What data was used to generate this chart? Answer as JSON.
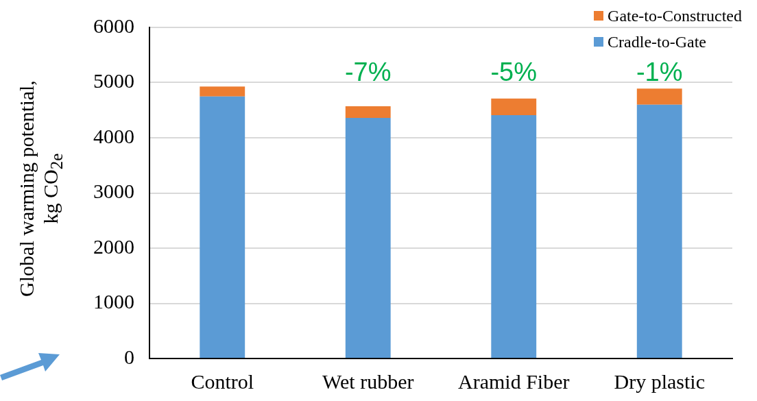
{
  "chart_data": {
    "type": "bar",
    "stacked": true,
    "ylabel": "Global warming potential,\nkg CO$_{2e}$",
    "categories": [
      "Control",
      "Wet rubber",
      "Aramid Fiber",
      "Dry plastic"
    ],
    "series": [
      {
        "name": "Cradle-to-Gate",
        "color": "#5b9bd5",
        "values": [
          4750,
          4360,
          4410,
          4600
        ]
      },
      {
        "name": "Gate-to-Constructed",
        "color": "#ed7d31",
        "values": [
          180,
          210,
          300,
          290
        ]
      }
    ],
    "ylim": [
      0,
      6000
    ],
    "yticks": [
      0,
      1000,
      2000,
      3000,
      4000,
      5000,
      6000
    ],
    "grid": "y",
    "legend": "top right",
    "annotations": [
      "-7%",
      "-5%",
      "-1%"
    ]
  }
}
